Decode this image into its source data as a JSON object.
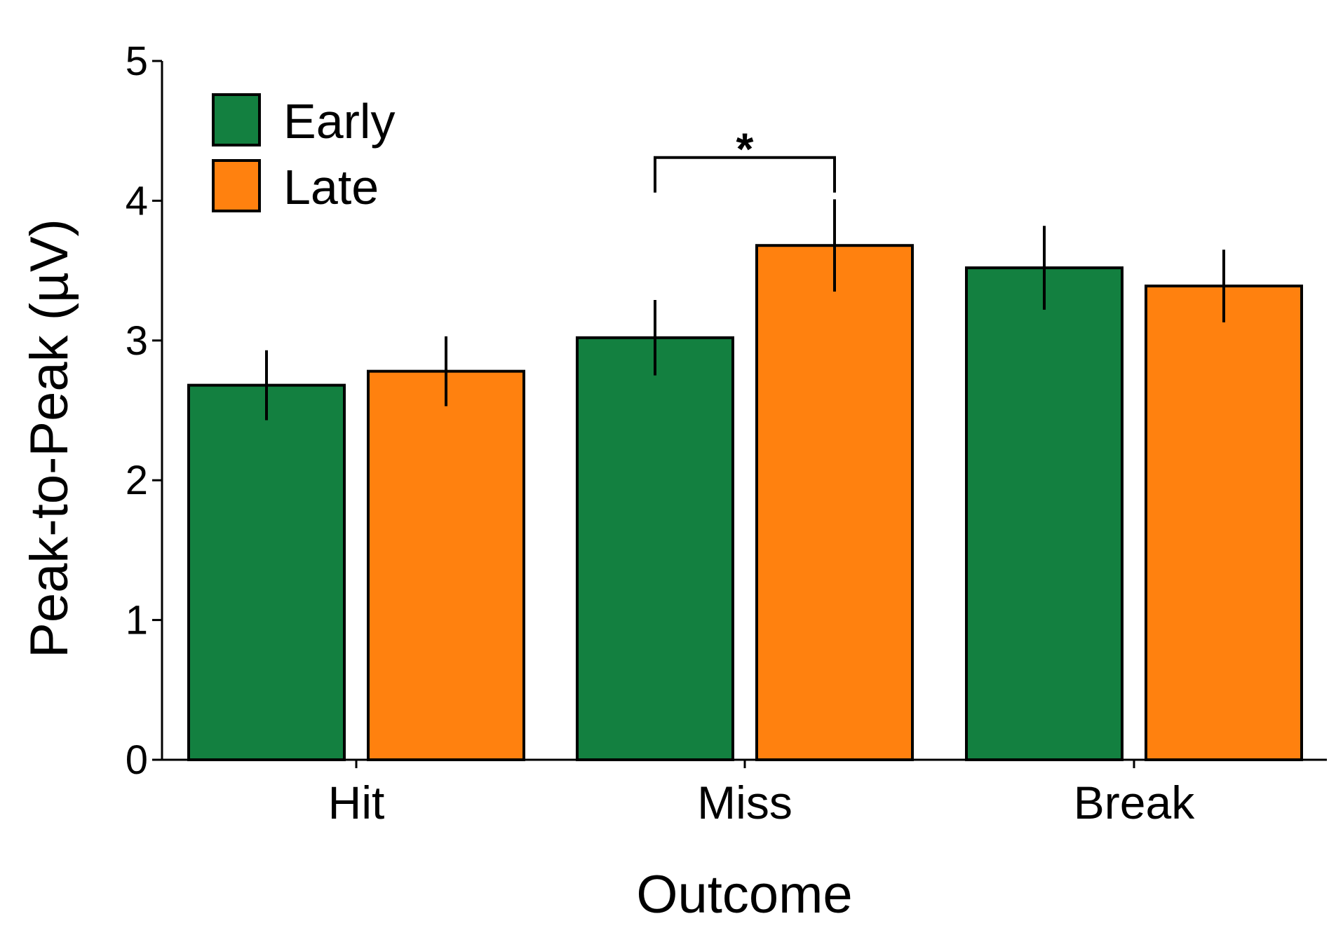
{
  "chart_data": {
    "type": "bar",
    "title": "",
    "xlabel": "Outcome",
    "ylabel": "Peak-to-Peak (µV)",
    "ylim": [
      0,
      5
    ],
    "yticks": [
      0,
      1,
      2,
      3,
      4,
      5
    ],
    "grid": false,
    "legend_position": "top-left",
    "categories": [
      "Hit",
      "Miss",
      "Break"
    ],
    "series": [
      {
        "name": "Early",
        "color": "#138040",
        "values": [
          2.68,
          3.02,
          3.52
        ],
        "errors": [
          0.25,
          0.27,
          0.3
        ]
      },
      {
        "name": "Late",
        "color": "#ff810f",
        "values": [
          2.78,
          3.68,
          3.39
        ],
        "errors": [
          0.25,
          0.33,
          0.26
        ]
      }
    ],
    "annotations": [
      {
        "text": "*",
        "category": "Miss",
        "from_series": "Early",
        "to_series": "Late",
        "bracket_level": 4.55
      }
    ]
  }
}
